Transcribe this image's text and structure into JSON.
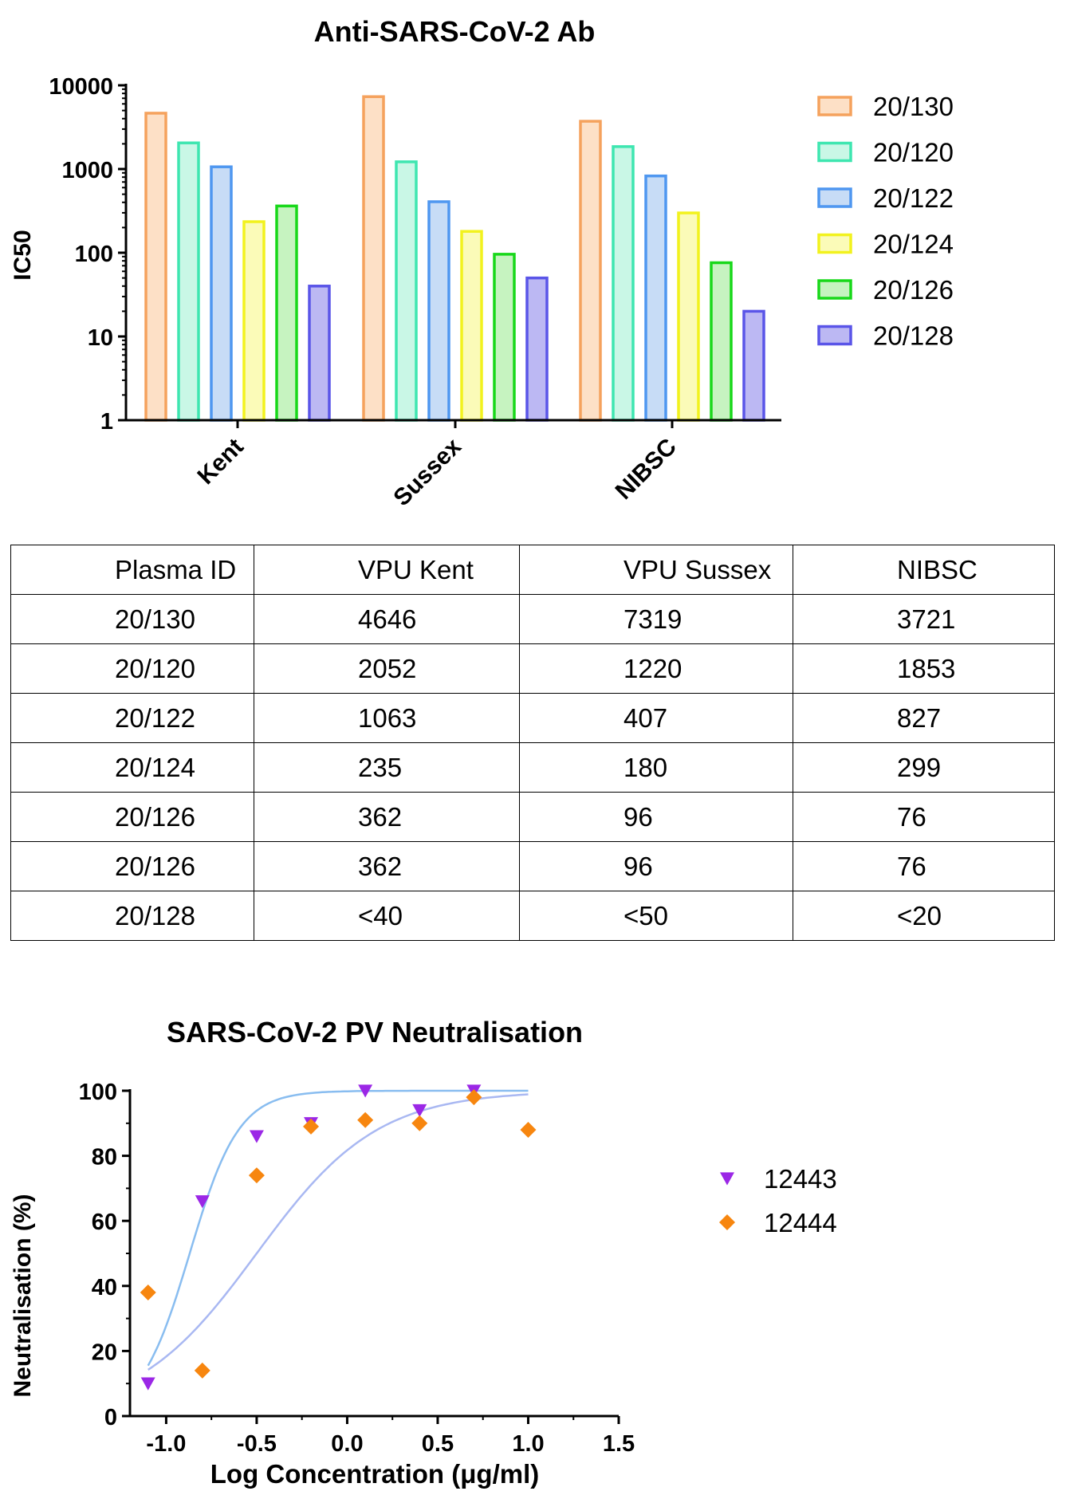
{
  "chart_data": [
    {
      "type": "bar",
      "title": "Anti-SARS-CoV-2 Ab",
      "ylabel": "IC50",
      "xlabel": "",
      "yscale": "log",
      "ylim": [
        1,
        10000
      ],
      "yticks": [
        "1",
        "10",
        "100",
        "1000",
        "10000"
      ],
      "categories": [
        "Kent",
        "Sussex",
        "NIBSC"
      ],
      "legend_position": "right",
      "series": [
        {
          "name": "20/130",
          "color": "#f5a25d",
          "fill": "#fde0c6",
          "values": [
            4646,
            7319,
            3721
          ]
        },
        {
          "name": "20/120",
          "color": "#3ee6b0",
          "fill": "#c9f7e6",
          "values": [
            2052,
            1220,
            1853
          ]
        },
        {
          "name": "20/122",
          "color": "#4f97f0",
          "fill": "#c7dcf6",
          "values": [
            1063,
            407,
            827
          ]
        },
        {
          "name": "20/124",
          "color": "#f2f21e",
          "fill": "#fbfbb8",
          "values": [
            235,
            180,
            299
          ]
        },
        {
          "name": "20/126",
          "color": "#18d81a",
          "fill": "#c6f3c0",
          "values": [
            362,
            96,
            76
          ]
        },
        {
          "name": "20/128",
          "color": "#5a55e8",
          "fill": "#bcb8f3",
          "values": [
            40,
            50,
            20
          ]
        }
      ]
    },
    {
      "type": "scatter",
      "title": "SARS-CoV-2 PV Neutralisation",
      "xlabel": "Log Concentration (μg/ml)",
      "ylabel": "Neutralisation (%)",
      "xlim": [
        -1.2,
        1.5
      ],
      "ylim": [
        0,
        100
      ],
      "xticks": [
        "-1.0",
        "-0.5",
        "0.0",
        "0.5",
        "1.0",
        "1.5"
      ],
      "yticks": [
        "0",
        "20",
        "40",
        "60",
        "80",
        "100"
      ],
      "legend_position": "right",
      "grid": false,
      "series": [
        {
          "name": "12443",
          "marker": "triangle-down",
          "color": "#9b27e6",
          "curve_color": "#a9b8f2",
          "points": [
            [
              -1.1,
              10
            ],
            [
              -0.8,
              66
            ],
            [
              -0.5,
              86
            ],
            [
              -0.2,
              90
            ],
            [
              0.1,
              100
            ],
            [
              0.4,
              94
            ],
            [
              0.7,
              100
            ]
          ]
        },
        {
          "name": "12444",
          "marker": "diamond",
          "color": "#f7860f",
          "curve_color": "#89bdf0",
          "points": [
            [
              -1.1,
              38
            ],
            [
              -0.8,
              14
            ],
            [
              -0.5,
              74
            ],
            [
              -0.2,
              89
            ],
            [
              0.1,
              91
            ],
            [
              0.4,
              90
            ],
            [
              0.7,
              98
            ],
            [
              1.0,
              88
            ]
          ]
        }
      ]
    }
  ],
  "table": {
    "headers": [
      "Plasma ID",
      "VPU Kent",
      "VPU Sussex",
      "NIBSC"
    ],
    "rows": [
      [
        "20/130",
        "4646",
        "7319",
        "3721"
      ],
      [
        "20/120",
        "2052",
        "1220",
        "1853"
      ],
      [
        "20/122",
        "1063",
        "407",
        "827"
      ],
      [
        "20/124",
        "235",
        "180",
        "299"
      ],
      [
        "20/126",
        "362",
        "96",
        "76"
      ],
      [
        "20/126",
        "362",
        "96",
        "76"
      ],
      [
        "20/128",
        "<40",
        "<50",
        "<20"
      ]
    ]
  }
}
